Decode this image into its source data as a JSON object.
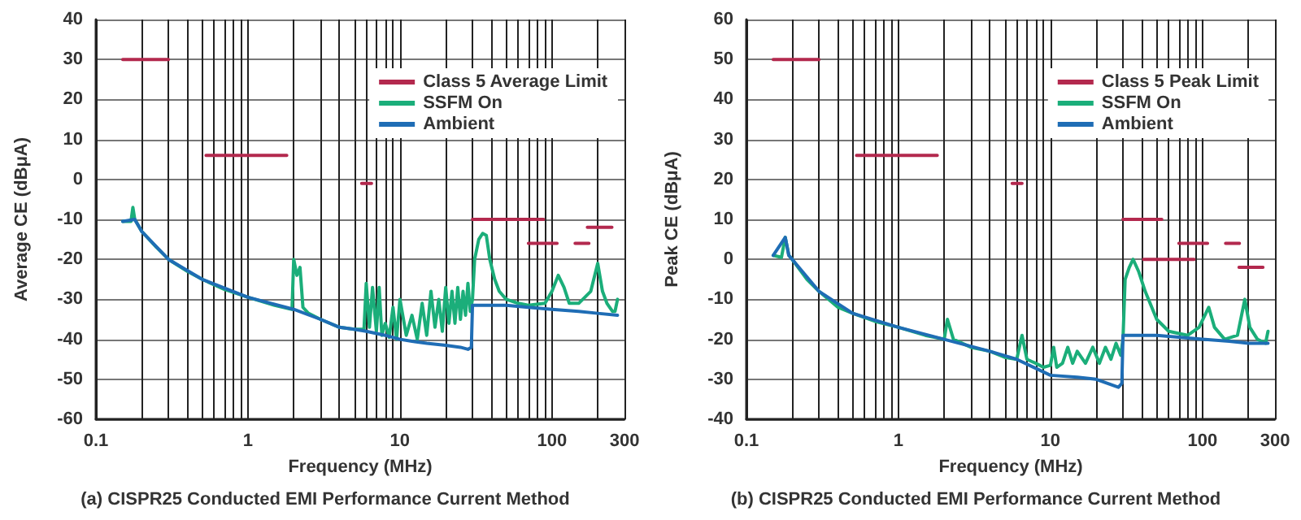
{
  "chart_data": [
    {
      "type": "line",
      "title": "(a) CISPR25 Conducted EMI Performance Current Method",
      "xlabel": "Frequency (MHz)",
      "ylabel": "Average CE (dBμA)",
      "log": "x",
      "xlim": [
        0.1,
        300
      ],
      "ylim": [
        -60,
        40
      ],
      "xticks": [
        0.1,
        {
          "value": 0.2,
          "label": null
        },
        {
          "value": 0.3,
          "label": null
        },
        {
          "value": 0.4,
          "label": null
        },
        {
          "value": 0.5,
          "label": null
        },
        {
          "value": 0.6,
          "label": null
        },
        {
          "value": 0.7,
          "label": null
        },
        {
          "value": 0.8,
          "label": null
        },
        {
          "value": 0.9,
          "label": null
        },
        1,
        {
          "value": 2,
          "label": null
        },
        {
          "value": 3,
          "label": null
        },
        {
          "value": 4,
          "label": null
        },
        {
          "value": 5,
          "label": null
        },
        {
          "value": 6,
          "label": null
        },
        {
          "value": 7,
          "label": null
        },
        {
          "value": 8,
          "label": null
        },
        {
          "value": 9,
          "label": null
        },
        10,
        {
          "value": 20,
          "label": null
        },
        {
          "value": 30,
          "label": null
        },
        {
          "value": 40,
          "label": null
        },
        {
          "value": 50,
          "label": null
        },
        {
          "value": 60,
          "label": null
        },
        {
          "value": 70,
          "label": null
        },
        {
          "value": 80,
          "label": null
        },
        {
          "value": 90,
          "label": null
        },
        100,
        {
          "value": 200,
          "label": null
        },
        300
      ],
      "yticks": [
        -60,
        -50,
        -40,
        -30,
        -20,
        -10,
        0,
        10,
        20,
        30,
        40
      ],
      "grid": true,
      "legend": "top right",
      "marker": "none",
      "line_style": "solid",
      "series": [
        {
          "name": "Class 5 Average Limit",
          "color": "#b3294e",
          "x": [
            0.15,
            0.3,
            null,
            0.53,
            1.8,
            null,
            5.6,
            6.5,
            null,
            30,
            88,
            null,
            70,
            108,
            null,
            142,
            175,
            null,
            171,
            248
          ],
          "values": [
            30,
            30,
            null,
            6,
            6,
            null,
            -1,
            -1,
            null,
            -10,
            -10,
            null,
            -16,
            -16,
            null,
            -16,
            -16,
            null,
            -12,
            -12
          ]
        },
        {
          "name": "SSFM On",
          "color": "#1bae7a",
          "x": [
            0.15,
            0.17,
            0.175,
            0.18,
            0.2,
            0.25,
            0.3,
            0.4,
            0.5,
            0.7,
            1,
            1.5,
            1.95,
            2,
            2.1,
            2.2,
            2.3,
            2.5,
            3,
            4,
            5,
            5.8,
            6,
            6.3,
            6.6,
            7,
            7.3,
            7.6,
            8,
            8.5,
            9,
            9.5,
            10,
            11,
            12,
            13,
            14,
            15,
            16,
            17,
            18,
            19,
            20,
            21,
            22,
            23,
            24,
            25,
            26,
            27,
            28,
            29,
            30,
            31,
            33,
            35,
            37,
            39,
            42,
            45,
            50,
            60,
            70,
            90,
            100,
            110,
            120,
            130,
            150,
            180,
            200,
            215,
            230,
            250,
            260,
            270
          ],
          "values": [
            -10.5,
            -10.5,
            -7,
            -10,
            -13,
            -17,
            -20,
            -23,
            -25,
            -27.5,
            -29.5,
            -31.5,
            -32.5,
            -20,
            -24,
            -22,
            -32,
            -33.5,
            -35,
            -37,
            -37.5,
            -37.5,
            -26,
            -37,
            -27,
            -38,
            -27,
            -39,
            -36,
            -39.5,
            -32,
            -40,
            -30,
            -39,
            -34,
            -40,
            -31,
            -39,
            -28,
            -37,
            -30,
            -38,
            -27,
            -36,
            -28,
            -36,
            -27,
            -35,
            -28,
            -34,
            -26,
            -33,
            -30,
            -20,
            -15,
            -13.5,
            -14,
            -20,
            -25,
            -28,
            -30,
            -31,
            -31.5,
            -31,
            -28,
            -24,
            -27,
            -31,
            -31,
            -28,
            -21,
            -28,
            -31,
            -33,
            -33,
            -30
          ]
        },
        {
          "name": "Ambient",
          "color": "#1f6db5",
          "x": [
            0.15,
            0.18,
            0.2,
            0.3,
            0.5,
            1,
            2,
            3,
            4,
            5,
            6,
            8,
            10,
            12,
            15,
            20,
            25,
            28,
            29.5,
            30,
            40,
            50,
            70,
            100,
            150,
            200,
            270
          ],
          "values": [
            -10.5,
            -10,
            -13,
            -20,
            -25,
            -29.5,
            -32.5,
            -35,
            -37,
            -37.5,
            -38,
            -39,
            -40,
            -40.5,
            -41,
            -41.5,
            -42,
            -42.5,
            -42,
            -31.5,
            -31.5,
            -31.5,
            -32,
            -32.5,
            -33,
            -33.5,
            -34
          ]
        }
      ]
    },
    {
      "type": "line",
      "title": "(b) CISPR25 Conducted EMI Performance Current Method",
      "xlabel": "Frequency (MHz)",
      "ylabel": "Peak CE (dBμA)",
      "log": "x",
      "xlim": [
        0.1,
        300
      ],
      "ylim": [
        -40,
        60
      ],
      "xticks": [
        0.1,
        {
          "value": 0.2,
          "label": null
        },
        {
          "value": 0.3,
          "label": null
        },
        {
          "value": 0.4,
          "label": null
        },
        {
          "value": 0.5,
          "label": null
        },
        {
          "value": 0.6,
          "label": null
        },
        {
          "value": 0.7,
          "label": null
        },
        {
          "value": 0.8,
          "label": null
        },
        {
          "value": 0.9,
          "label": null
        },
        1,
        {
          "value": 2,
          "label": null
        },
        {
          "value": 3,
          "label": null
        },
        {
          "value": 4,
          "label": null
        },
        {
          "value": 5,
          "label": null
        },
        {
          "value": 6,
          "label": null
        },
        {
          "value": 7,
          "label": null
        },
        {
          "value": 8,
          "label": null
        },
        {
          "value": 9,
          "label": null
        },
        10,
        {
          "value": 20,
          "label": null
        },
        {
          "value": 30,
          "label": null
        },
        {
          "value": 40,
          "label": null
        },
        {
          "value": 50,
          "label": null
        },
        {
          "value": 60,
          "label": null
        },
        {
          "value": 70,
          "label": null
        },
        {
          "value": 80,
          "label": null
        },
        {
          "value": 90,
          "label": null
        },
        100,
        {
          "value": 200,
          "label": null
        },
        300
      ],
      "yticks": [
        -40,
        -30,
        -20,
        -10,
        0,
        10,
        20,
        30,
        40,
        50,
        60
      ],
      "grid": true,
      "legend": "top right",
      "marker": "none",
      "line_style": "solid",
      "series": [
        {
          "name": "Class 5 Peak Limit",
          "color": "#b3294e",
          "x": [
            0.15,
            0.3,
            null,
            0.53,
            1.8,
            null,
            5.6,
            6.5,
            null,
            30,
            54,
            null,
            41,
            88,
            null,
            70,
            108,
            null,
            142,
            175,
            null,
            174,
            250
          ],
          "values": [
            50,
            50,
            null,
            26,
            26,
            null,
            19,
            19,
            null,
            10,
            10,
            null,
            0,
            0,
            null,
            4,
            4,
            null,
            4,
            4,
            null,
            -2,
            -2
          ]
        },
        {
          "name": "SSFM On",
          "color": "#1bae7a",
          "x": [
            0.15,
            0.17,
            0.18,
            0.19,
            0.2,
            0.25,
            0.3,
            0.4,
            0.5,
            0.7,
            1,
            1.5,
            2,
            2.1,
            2.3,
            3,
            4,
            5,
            6,
            6.5,
            7,
            8,
            9,
            10,
            10.5,
            11,
            12,
            13,
            14,
            15,
            17,
            19,
            21,
            23,
            25,
            27,
            29,
            30,
            31,
            33,
            35,
            38,
            42,
            50,
            60,
            80,
            95,
            110,
            120,
            140,
            170,
            190,
            205,
            230,
            260,
            270
          ],
          "values": [
            1,
            0.5,
            5.5,
            1,
            0,
            -5,
            -8,
            -12,
            -13.5,
            -15.5,
            -17,
            -19,
            -20,
            -15,
            -20,
            -22,
            -23,
            -24.5,
            -25,
            -19,
            -25,
            -26,
            -27,
            -26.5,
            -22,
            -27,
            -26,
            -22,
            -26,
            -23,
            -26,
            -22,
            -26,
            -22,
            -25,
            -21,
            -24,
            -20,
            -5,
            -2,
            0,
            -3,
            -8,
            -15,
            -18,
            -19,
            -17,
            -12,
            -17,
            -20,
            -19,
            -10,
            -17,
            -20,
            -21,
            -18
          ]
        },
        {
          "name": "Ambient",
          "color": "#1f6db5",
          "x": [
            0.15,
            0.18,
            0.19,
            0.3,
            0.5,
            1,
            2,
            4,
            6,
            10,
            15,
            20,
            28,
            29.5,
            30,
            50,
            100,
            150,
            200,
            270
          ],
          "values": [
            1,
            5.5,
            1,
            -8,
            -13.5,
            -17,
            -20,
            -23,
            -25,
            -29,
            -29.5,
            -30,
            -32,
            -31,
            -19,
            -19,
            -20,
            -20.5,
            -21,
            -21
          ]
        }
      ]
    }
  ]
}
